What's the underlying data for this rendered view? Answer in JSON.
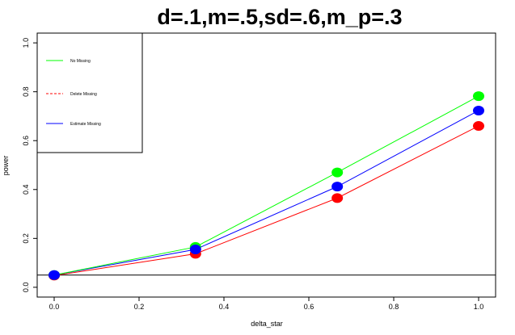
{
  "chart_data": {
    "type": "line",
    "title": "d=.1,m=.5,sd=.6,m_p=.3",
    "xlabel": "delta_star",
    "ylabel": "power",
    "xlim": [
      -0.04,
      1.04
    ],
    "ylim": [
      -0.04,
      1.04
    ],
    "xticks": [
      "0.0",
      "0.2",
      "0.4",
      "0.6",
      "0.8",
      "1.0"
    ],
    "yticks": [
      "0.0",
      "0.2",
      "0.4",
      "0.6",
      "0.8",
      "1.0"
    ],
    "x": [
      0.0,
      0.333,
      0.667,
      1.0
    ],
    "reference_line_y": 0.05,
    "legend_position": "top-left",
    "series": [
      {
        "name": "No Missing",
        "color": "#00ff00",
        "dash": "solid",
        "values": [
          0.05,
          0.165,
          0.47,
          0.782
        ]
      },
      {
        "name": "Delete Missing",
        "color": "#ff0000",
        "dash": "dashed",
        "values": [
          0.048,
          0.137,
          0.365,
          0.66
        ]
      },
      {
        "name": "Estimate Missing",
        "color": "#0000ff",
        "dash": "solid",
        "values": [
          0.05,
          0.155,
          0.412,
          0.723
        ]
      }
    ]
  }
}
